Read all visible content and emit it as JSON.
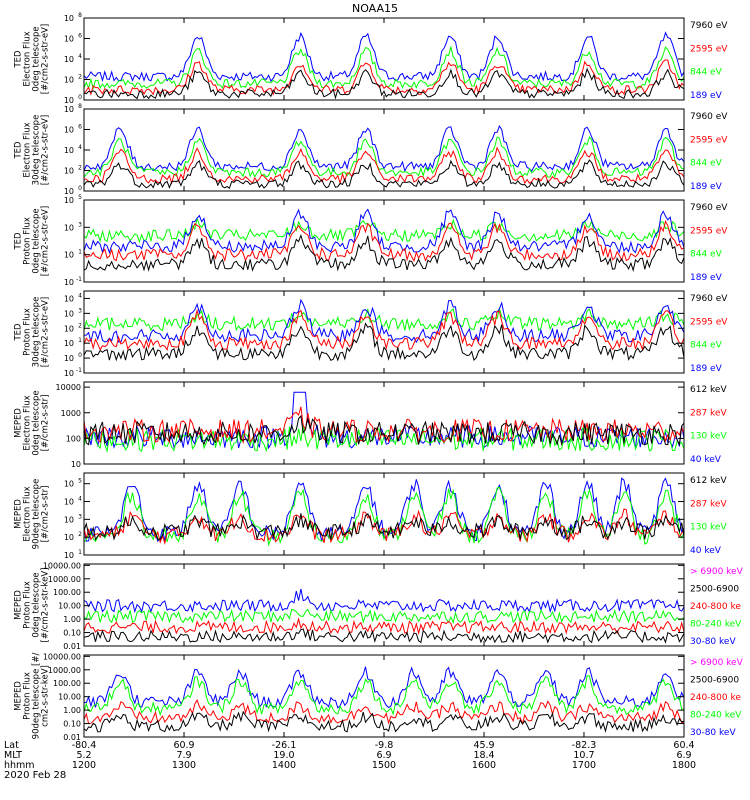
{
  "title": "NOAA15",
  "colors": {
    "black": "#000000",
    "red": "#ff0000",
    "green": "#00ff00",
    "blue": "#0000ff",
    "magenta": "#ff00ff"
  },
  "chart_data": [
    {
      "type": "line",
      "ylabel": [
        "TED",
        "Electron Flux",
        "0deg telescope",
        "[#/cm2-s-str-eV]"
      ],
      "log": true,
      "yticks": [
        {
          "v": 0,
          "t": "10",
          "e": "0"
        },
        {
          "v": 2,
          "t": "10",
          "e": "2"
        },
        {
          "v": 4,
          "t": "10",
          "e": "4"
        },
        {
          "v": 6,
          "t": "10",
          "e": "6"
        },
        {
          "v": 8,
          "t": "10",
          "e": "8"
        }
      ],
      "ylim": [
        0,
        8
      ],
      "legend": [
        {
          "text": "7960 eV",
          "color": "#000000"
        },
        {
          "text": "2595 eV",
          "color": "#ff0000"
        },
        {
          "text": "844 eV",
          "color": "#00ff00"
        },
        {
          "text": "189 eV",
          "color": "#0000ff"
        }
      ],
      "series": [
        {
          "name": "189 eV",
          "color": "#0000ff",
          "base": 2.3,
          "peak": 6.2
        },
        {
          "name": "844 eV",
          "color": "#00ff00",
          "base": 1.6,
          "peak": 4.8
        },
        {
          "name": "2595 eV",
          "color": "#ff0000",
          "base": 1.0,
          "peak": 3.6
        },
        {
          "name": "7960 eV",
          "color": "#000000",
          "base": 0.6,
          "peak": 2.6
        }
      ],
      "bumps": [
        0.19,
        0.36,
        0.47,
        0.61,
        0.69,
        0.84,
        0.97
      ]
    },
    {
      "type": "line",
      "ylabel": [
        "TED",
        "Electron Flux",
        "30deg telescope",
        "[#/cm2-s-str-eV]"
      ],
      "log": true,
      "yticks": [
        {
          "v": 0,
          "t": "10",
          "e": "0"
        },
        {
          "v": 2,
          "t": "10",
          "e": "2"
        },
        {
          "v": 4,
          "t": "10",
          "e": "4"
        },
        {
          "v": 6,
          "t": "10",
          "e": "6"
        },
        {
          "v": 8,
          "t": "10",
          "e": "8"
        }
      ],
      "ylim": [
        0,
        8
      ],
      "legend": [
        {
          "text": "7960 eV",
          "color": "#000000"
        },
        {
          "text": "2595 eV",
          "color": "#ff0000"
        },
        {
          "text": "844 eV",
          "color": "#00ff00"
        },
        {
          "text": "189 eV",
          "color": "#0000ff"
        }
      ],
      "series": [
        {
          "name": "189 eV",
          "color": "#0000ff",
          "base": 2.4,
          "peak": 6.0
        },
        {
          "name": "844 eV",
          "color": "#00ff00",
          "base": 1.8,
          "peak": 4.9
        },
        {
          "name": "2595 eV",
          "color": "#ff0000",
          "base": 1.2,
          "peak": 3.8
        },
        {
          "name": "7960 eV",
          "color": "#000000",
          "base": 0.7,
          "peak": 2.6
        }
      ],
      "bumps": [
        0.06,
        0.19,
        0.36,
        0.47,
        0.61,
        0.69,
        0.84,
        0.97
      ]
    },
    {
      "type": "line",
      "ylabel": [
        "TED",
        "Proton Flux",
        "0deg telescope",
        "[#/cm2-s-str-eV]"
      ],
      "log": true,
      "yticks": [
        {
          "v": -1,
          "t": "10",
          "e": "-1"
        },
        {
          "v": 1,
          "t": "10",
          "e": "1"
        },
        {
          "v": 3,
          "t": "10",
          "e": "3"
        },
        {
          "v": 5,
          "t": "10",
          "e": "5"
        }
      ],
      "ylim": [
        -1,
        5
      ],
      "legend": [
        {
          "text": "7960 eV",
          "color": "#000000"
        },
        {
          "text": "2595 eV",
          "color": "#ff0000"
        },
        {
          "text": "844 eV",
          "color": "#00ff00"
        },
        {
          "text": "189 eV",
          "color": "#0000ff"
        }
      ],
      "series": [
        {
          "name": "844 eV",
          "color": "#00ff00",
          "base": 2.4,
          "peak": 3.2
        },
        {
          "name": "189 eV",
          "color": "#0000ff",
          "base": 1.6,
          "peak": 4.0
        },
        {
          "name": "2595 eV",
          "color": "#ff0000",
          "base": 1.0,
          "peak": 3.0
        },
        {
          "name": "7960 eV",
          "color": "#000000",
          "base": 0.3,
          "peak": 2.0
        }
      ],
      "bumps": [
        0.19,
        0.36,
        0.47,
        0.61,
        0.69,
        0.84,
        0.97
      ]
    },
    {
      "type": "line",
      "ylabel": [
        "TED",
        "Proton Flux",
        "30deg telescope",
        "[#/cm2-s-str-eV]"
      ],
      "log": true,
      "yticks": [
        {
          "v": -1,
          "t": "10",
          "e": "-1"
        },
        {
          "v": 0,
          "t": "10",
          "e": "0"
        },
        {
          "v": 1,
          "t": "10",
          "e": "1"
        },
        {
          "v": 2,
          "t": "10",
          "e": "2"
        },
        {
          "v": 3,
          "t": "10",
          "e": "3"
        },
        {
          "v": 4,
          "t": "10",
          "e": "4"
        }
      ],
      "ylim": [
        -1,
        4.5
      ],
      "legend": [
        {
          "text": "7960 eV",
          "color": "#000000"
        },
        {
          "text": "2595 eV",
          "color": "#ff0000"
        },
        {
          "text": "844 eV",
          "color": "#00ff00"
        },
        {
          "text": "189 eV",
          "color": "#0000ff"
        }
      ],
      "series": [
        {
          "name": "844 eV",
          "color": "#00ff00",
          "base": 2.3,
          "peak": 2.9
        },
        {
          "name": "189 eV",
          "color": "#0000ff",
          "base": 1.5,
          "peak": 3.5
        },
        {
          "name": "2595 eV",
          "color": "#ff0000",
          "base": 1.0,
          "peak": 2.8
        },
        {
          "name": "7960 eV",
          "color": "#000000",
          "base": 0.3,
          "peak": 2.0
        }
      ],
      "bumps": [
        0.19,
        0.36,
        0.47,
        0.61,
        0.69,
        0.84,
        0.97
      ]
    },
    {
      "type": "line",
      "ylabel": [
        "MEPED",
        "Electron Flux",
        "0deg telescope",
        "[#/cm2-s-str]"
      ],
      "log": true,
      "yticks": [
        {
          "v": 1,
          "t": "10",
          "e": ""
        },
        {
          "v": 2,
          "t": "100",
          "e": ""
        },
        {
          "v": 3,
          "t": "1000",
          "e": ""
        },
        {
          "v": 4,
          "t": "10000",
          "e": ""
        }
      ],
      "ylim": [
        1,
        4.2
      ],
      "legend": [
        {
          "text": "612 keV",
          "color": "#000000"
        },
        {
          "text": "287 keV",
          "color": "#ff0000"
        },
        {
          "text": "130 keV",
          "color": "#00ff00"
        },
        {
          "text": "40 keV",
          "color": "#0000ff"
        }
      ],
      "series": [
        {
          "name": "40 keV",
          "color": "#0000ff",
          "base": 2.05,
          "peak": 2.9
        },
        {
          "name": "130 keV",
          "color": "#00ff00",
          "base": 1.95,
          "peak": 2.1
        },
        {
          "name": "287 keV",
          "color": "#ff0000",
          "base": 2.3,
          "peak": 2.8
        },
        {
          "name": "612 keV",
          "color": "#000000",
          "base": 2.2,
          "peak": 2.6
        }
      ],
      "bumps": [
        0.36
      ],
      "spike": {
        "x": 0.36,
        "v": 3.8
      }
    },
    {
      "type": "line",
      "ylabel": [
        "MEPED",
        "Electron Flux",
        "90deg telescope",
        "[#/cm2-s-str]"
      ],
      "log": true,
      "yticks": [
        {
          "v": 1,
          "t": "10",
          "e": "1"
        },
        {
          "v": 2,
          "t": "10",
          "e": "2"
        },
        {
          "v": 3,
          "t": "10",
          "e": "3"
        },
        {
          "v": 4,
          "t": "10",
          "e": "4"
        },
        {
          "v": 5,
          "t": "10",
          "e": "5"
        }
      ],
      "ylim": [
        1,
        5.6
      ],
      "legend": [
        {
          "text": "612 keV",
          "color": "#000000"
        },
        {
          "text": "287 keV",
          "color": "#ff0000"
        },
        {
          "text": "130 keV",
          "color": "#00ff00"
        },
        {
          "text": "40 keV",
          "color": "#0000ff"
        }
      ],
      "series": [
        {
          "name": "40 keV",
          "color": "#0000ff",
          "base": 2.2,
          "peak": 5.0
        },
        {
          "name": "130 keV",
          "color": "#00ff00",
          "base": 2.0,
          "peak": 4.4
        },
        {
          "name": "287 keV",
          "color": "#ff0000",
          "base": 2.1,
          "peak": 3.2
        },
        {
          "name": "612 keV",
          "color": "#000000",
          "base": 2.3,
          "peak": 2.9
        }
      ],
      "bumps": [
        0.08,
        0.19,
        0.26,
        0.36,
        0.47,
        0.55,
        0.61,
        0.69,
        0.77,
        0.84,
        0.9,
        0.97
      ]
    },
    {
      "type": "line",
      "ylabel": [
        "MEPED",
        "Proton Flux",
        "0deg telescope",
        "[#/cm2-s-str-keV]"
      ],
      "log": true,
      "yticks": [
        {
          "v": -2,
          "t": "0.01",
          "e": ""
        },
        {
          "v": -1,
          "t": "0.10",
          "e": ""
        },
        {
          "v": 0,
          "t": "1.00",
          "e": ""
        },
        {
          "v": 1,
          "t": "10.00",
          "e": ""
        },
        {
          "v": 2,
          "t": "100.00",
          "e": ""
        },
        {
          "v": 3,
          "t": "1000.00",
          "e": ""
        },
        {
          "v": 4,
          "t": "10000.00",
          "e": ""
        }
      ],
      "ylim": [
        -2,
        4.1
      ],
      "legend": [
        {
          "text": "> 6900 keV",
          "color": "#ff00ff"
        },
        {
          "text": "2500-6900",
          "color": "#000000"
        },
        {
          "text": "240-800 ke",
          "color": "#ff0000"
        },
        {
          "text": "80-240 keV",
          "color": "#00ff00"
        },
        {
          "text": "30-80 keV",
          "color": "#0000ff"
        }
      ],
      "series": [
        {
          "name": "30-80 keV",
          "color": "#0000ff",
          "base": 1.0,
          "peak": 1.8
        },
        {
          "name": "80-240 keV",
          "color": "#00ff00",
          "base": 0.2,
          "peak": 0.5
        },
        {
          "name": "240-800 ke",
          "color": "#ff0000",
          "base": -0.6,
          "peak": -0.3
        },
        {
          "name": "2500-6900",
          "color": "#000000",
          "base": -1.3,
          "peak": -1.0
        }
      ],
      "bumps": [
        0.36
      ],
      "spike": {
        "x": 0.36,
        "v": 0.7
      }
    },
    {
      "type": "line",
      "ylabel": [
        "MEPED",
        "Proton Flux",
        "90deg telescope [#/",
        "cm2-s-str-keV]"
      ],
      "log": true,
      "yticks": [
        {
          "v": -2,
          "t": "0.01",
          "e": ""
        },
        {
          "v": -1,
          "t": "0.10",
          "e": ""
        },
        {
          "v": 0,
          "t": "1.00",
          "e": ""
        },
        {
          "v": 1,
          "t": "10.00",
          "e": ""
        },
        {
          "v": 2,
          "t": "100.00",
          "e": ""
        },
        {
          "v": 3,
          "t": "1000.00",
          "e": ""
        },
        {
          "v": 4,
          "t": "10000.00",
          "e": ""
        }
      ],
      "ylim": [
        -2,
        4.1
      ],
      "legend": [
        {
          "text": "> 6900 keV",
          "color": "#ff00ff"
        },
        {
          "text": "2500-6900",
          "color": "#000000"
        },
        {
          "text": "240-800 ke",
          "color": "#ff0000"
        },
        {
          "text": "80-240 keV",
          "color": "#00ff00"
        },
        {
          "text": "30-80 keV",
          "color": "#0000ff"
        }
      ],
      "series": [
        {
          "name": "30-80 keV",
          "color": "#0000ff",
          "base": 0.6,
          "peak": 2.8
        },
        {
          "name": "80-240 keV",
          "color": "#00ff00",
          "base": 0.1,
          "peak": 2.2
        },
        {
          "name": "240-800 ke",
          "color": "#ff0000",
          "base": -0.6,
          "peak": 0.3
        },
        {
          "name": "2500-6900",
          "color": "#000000",
          "base": -1.2,
          "peak": -0.5
        }
      ],
      "bumps": [
        0.06,
        0.19,
        0.26,
        0.36,
        0.47,
        0.55,
        0.61,
        0.69,
        0.77,
        0.84,
        0.97
      ]
    }
  ],
  "x_axis": {
    "row_labels": [
      "Lat",
      "MLT",
      "hhmm"
    ],
    "date": "2020 Feb 28",
    "ticks": [
      {
        "x": 0.0,
        "lat": "-80.4",
        "mlt": "5.2",
        "hhmm": "1200"
      },
      {
        "x": 0.1667,
        "lat": "60.9",
        "mlt": "7.9",
        "hhmm": "1300"
      },
      {
        "x": 0.3333,
        "lat": "-26.1",
        "mlt": "19.0",
        "hhmm": "1400"
      },
      {
        "x": 0.5,
        "lat": "-9.8",
        "mlt": "6.9",
        "hhmm": "1500"
      },
      {
        "x": 0.6667,
        "lat": "45.9",
        "mlt": "18.4",
        "hhmm": "1600"
      },
      {
        "x": 0.8333,
        "lat": "-82.3",
        "mlt": "10.7",
        "hhmm": "1700"
      },
      {
        "x": 1.0,
        "lat": "60.4",
        "mlt": "6.9",
        "hhmm": "1800"
      }
    ]
  }
}
